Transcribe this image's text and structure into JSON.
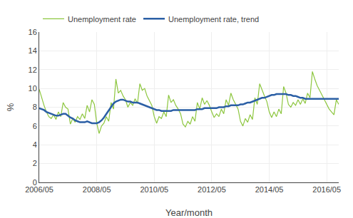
{
  "chart_data": {
    "type": "line",
    "xlabel": "Year/month",
    "ylabel": "%",
    "categories": [
      "2006/05",
      null,
      null,
      null,
      null,
      null,
      null,
      null,
      null,
      null,
      null,
      null,
      null,
      null,
      null,
      null,
      null,
      null,
      null,
      null,
      null,
      null,
      null,
      null,
      "2008/05",
      null,
      null,
      null,
      null,
      null,
      null,
      null,
      null,
      null,
      null,
      null,
      null,
      null,
      null,
      null,
      null,
      null,
      null,
      null,
      null,
      null,
      null,
      null,
      "2010/05",
      null,
      null,
      null,
      null,
      null,
      null,
      null,
      null,
      null,
      null,
      null,
      null,
      null,
      null,
      null,
      null,
      null,
      null,
      null,
      null,
      null,
      null,
      null,
      "2012/05",
      null,
      null,
      null,
      null,
      null,
      null,
      null,
      null,
      null,
      null,
      null,
      null,
      null,
      null,
      null,
      null,
      null,
      null,
      null,
      null,
      null,
      null,
      null,
      "2014/05",
      null,
      null,
      null,
      null,
      null,
      null,
      null,
      null,
      null,
      null,
      null,
      null,
      null,
      null,
      null,
      null,
      null,
      null,
      null,
      null,
      null,
      null,
      null,
      "2016/05",
      null,
      null,
      null,
      null,
      null
    ],
    "series": [
      {
        "name": "Unemployment rate",
        "color": "#8dc63f",
        "values": [
          9.9,
          9.0,
          8.2,
          7.5,
          7.0,
          6.8,
          7.2,
          6.7,
          7.5,
          7.0,
          8.5,
          8.0,
          7.8,
          6.2,
          6.8,
          6.4,
          7.0,
          6.7,
          7.3,
          6.8,
          8.2,
          7.5,
          8.8,
          8.3,
          6.3,
          5.2,
          6.0,
          6.3,
          7.0,
          6.5,
          8.5,
          7.8,
          11.0,
          9.5,
          9.8,
          9.2,
          8.8,
          8.0,
          8.5,
          8.2,
          8.9,
          8.4,
          10.5,
          9.8,
          10.0,
          9.2,
          8.7,
          8.2,
          7.0,
          6.3,
          7.0,
          6.8,
          7.5,
          7.0,
          9.3,
          8.5,
          8.8,
          8.2,
          7.8,
          7.3,
          6.2,
          5.9,
          6.5,
          6.2,
          7.0,
          6.5,
          8.5,
          7.8,
          9.0,
          8.3,
          8.7,
          8.2,
          7.5,
          6.9,
          7.3,
          7.0,
          7.8,
          7.3,
          8.8,
          8.2,
          9.5,
          8.8,
          8.3,
          7.8,
          6.5,
          6.0,
          6.8,
          6.4,
          7.2,
          6.7,
          9.0,
          8.3,
          10.5,
          9.8,
          9.2,
          8.6,
          7.5,
          6.9,
          7.5,
          7.0,
          7.8,
          7.3,
          10.2,
          9.5,
          8.3,
          8.0,
          8.5,
          8.2,
          8.8,
          8.3,
          8.9,
          8.4,
          9.5,
          9.0,
          11.8,
          11.0,
          10.3,
          9.8,
          9.3,
          8.8,
          8.2,
          7.8,
          7.5,
          7.2,
          8.8,
          8.3
        ]
      },
      {
        "name": "Unemployment rate, trend",
        "color": "#2b5fa5",
        "values": [
          7.9,
          7.8,
          7.7,
          7.5,
          7.4,
          7.3,
          7.2,
          7.1,
          7.1,
          7.2,
          7.3,
          7.3,
          7.1,
          6.9,
          6.8,
          6.6,
          6.5,
          6.4,
          6.4,
          6.4,
          6.5,
          6.4,
          6.3,
          6.3,
          6.3,
          6.4,
          6.6,
          6.9,
          7.3,
          7.7,
          8.1,
          8.4,
          8.6,
          8.7,
          8.8,
          8.8,
          8.7,
          8.6,
          8.6,
          8.5,
          8.5,
          8.5,
          8.4,
          8.3,
          8.2,
          8.1,
          8.0,
          7.9,
          7.8,
          7.7,
          7.7,
          7.6,
          7.6,
          7.6,
          7.6,
          7.6,
          7.7,
          7.7,
          7.7,
          7.7,
          7.7,
          7.7,
          7.7,
          7.7,
          7.7,
          7.7,
          7.8,
          7.8,
          7.8,
          7.9,
          7.9,
          7.9,
          7.9,
          7.9,
          7.9,
          8.0,
          8.0,
          8.0,
          8.1,
          8.1,
          8.2,
          8.2,
          8.2,
          8.2,
          8.3,
          8.3,
          8.4,
          8.5,
          8.5,
          8.6,
          8.7,
          8.8,
          8.9,
          9.0,
          9.0,
          9.1,
          9.2,
          9.3,
          9.3,
          9.4,
          9.4,
          9.4,
          9.4,
          9.4,
          9.3,
          9.3,
          9.2,
          9.2,
          9.1,
          9.0,
          9.0,
          8.9,
          8.9,
          8.9,
          8.9,
          8.9,
          8.9,
          8.9,
          8.9,
          8.9,
          8.9,
          8.9,
          8.9,
          8.9,
          8.9,
          8.9
        ]
      }
    ],
    "ylim": [
      0,
      16
    ],
    "yticks": [
      0,
      2,
      4,
      6,
      8,
      10,
      12,
      14,
      16
    ],
    "grid": true,
    "legend": "upper left"
  }
}
